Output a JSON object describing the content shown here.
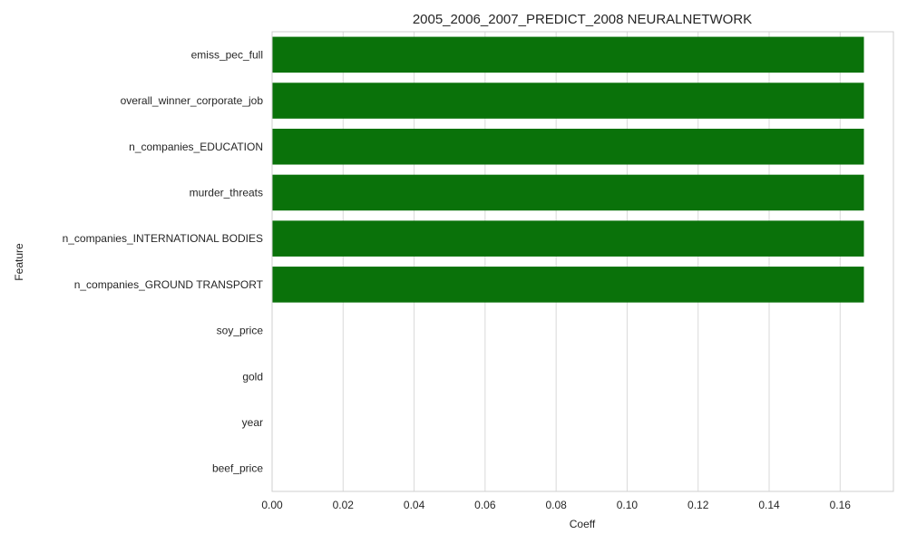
{
  "chart_data": {
    "type": "bar",
    "orientation": "horizontal",
    "title": "2005_2006_2007_PREDICT_2008 NEURALNETWORK",
    "xlabel": "Coeff",
    "ylabel": "Feature",
    "categories": [
      "emiss_pec_full",
      "overall_winner_corporate_job",
      "n_companies_EDUCATION",
      "murder_threats",
      "n_companies_INTERNATIONAL BODIES",
      "n_companies_GROUND TRANSPORT",
      "soy_price",
      "gold",
      "year",
      "beef_price"
    ],
    "values": [
      0.1667,
      0.1667,
      0.1667,
      0.1667,
      0.1667,
      0.1667,
      0,
      0,
      0,
      0
    ],
    "xlim": [
      0,
      0.175
    ],
    "xticks": [
      0.0,
      0.02,
      0.04,
      0.06,
      0.08,
      0.1,
      0.12,
      0.14,
      0.16
    ],
    "xtick_labels": [
      "0.00",
      "0.02",
      "0.04",
      "0.06",
      "0.08",
      "0.10",
      "0.12",
      "0.14",
      "0.16"
    ],
    "grid": "x",
    "bar_color": "#0a720a"
  }
}
